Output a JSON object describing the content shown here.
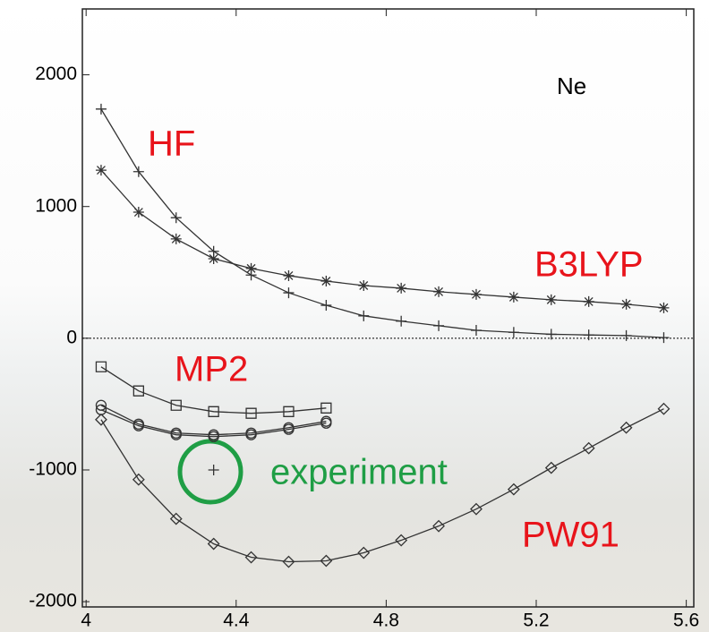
{
  "chart_data": {
    "type": "line",
    "annotations": [
      "HF",
      "B3LYP",
      "MP2",
      "PW91",
      "Ne",
      "experiment"
    ],
    "xlim": [
      3.99,
      5.62
    ],
    "ylim": [
      -2040,
      2500
    ],
    "xticks": [
      4,
      4.4,
      4.8,
      5.2,
      5.6
    ],
    "yticks": [
      -2000,
      -1000,
      0,
      1000,
      2000
    ],
    "zero_line": 0,
    "series": [
      {
        "marker": "plus",
        "color": "#333333",
        "x": [
          4.04,
          4.14,
          4.24,
          4.34,
          4.44,
          4.54,
          4.64,
          4.74,
          4.84,
          4.94,
          5.04,
          5.14,
          5.24,
          5.34,
          5.44,
          5.54
        ],
        "values": [
          1740,
          1265,
          915,
          660,
          480,
          345,
          250,
          170,
          130,
          95,
          60,
          45,
          30,
          25,
          20,
          5
        ]
      },
      {
        "marker": "star",
        "color": "#333333",
        "x": [
          4.04,
          4.14,
          4.24,
          4.34,
          4.44,
          4.54,
          4.64,
          4.74,
          4.84,
          4.94,
          5.04,
          5.14,
          5.24,
          5.34,
          5.44,
          5.54
        ],
        "values": [
          1276,
          957,
          754,
          604,
          530,
          475,
          434,
          400,
          380,
          353,
          333,
          312,
          292,
          278,
          258,
          231
        ]
      },
      {
        "marker": "square",
        "color": "#333333",
        "x": [
          4.04,
          4.14,
          4.24,
          4.34,
          4.44,
          4.54,
          4.64
        ],
        "values": [
          -217,
          -400,
          -509,
          -557,
          -570,
          -557,
          -530
        ]
      },
      {
        "marker": "circle",
        "color": "#333333",
        "x": [
          4.04,
          4.14,
          4.24,
          4.34,
          4.44,
          4.54,
          4.64
        ],
        "values": [
          -509,
          -652,
          -720,
          -733,
          -720,
          -679,
          -631
        ]
      },
      {
        "marker": "circle",
        "color": "#333333",
        "x": [
          4.04,
          4.14,
          4.24,
          4.34,
          4.44,
          4.54,
          4.64
        ],
        "values": [
          -543,
          -665,
          -733,
          -747,
          -733,
          -692,
          -645
        ]
      },
      {
        "marker": "diamond",
        "color": "#333333",
        "x": [
          4.04,
          4.14,
          4.24,
          4.34,
          4.44,
          4.54,
          4.64,
          4.74,
          4.84,
          4.94,
          5.04,
          5.14,
          5.24,
          5.34,
          5.44,
          5.54
        ],
        "values": [
          -618,
          -1073,
          -1371,
          -1561,
          -1663,
          -1697,
          -1690,
          -1629,
          -1534,
          -1426,
          -1297,
          -1147,
          -984,
          -835,
          -679,
          -536
        ]
      },
      {
        "marker": "plus",
        "color": "#333333",
        "line": false,
        "x": [
          4.34
        ],
        "values": [
          -1000
        ]
      }
    ]
  }
}
